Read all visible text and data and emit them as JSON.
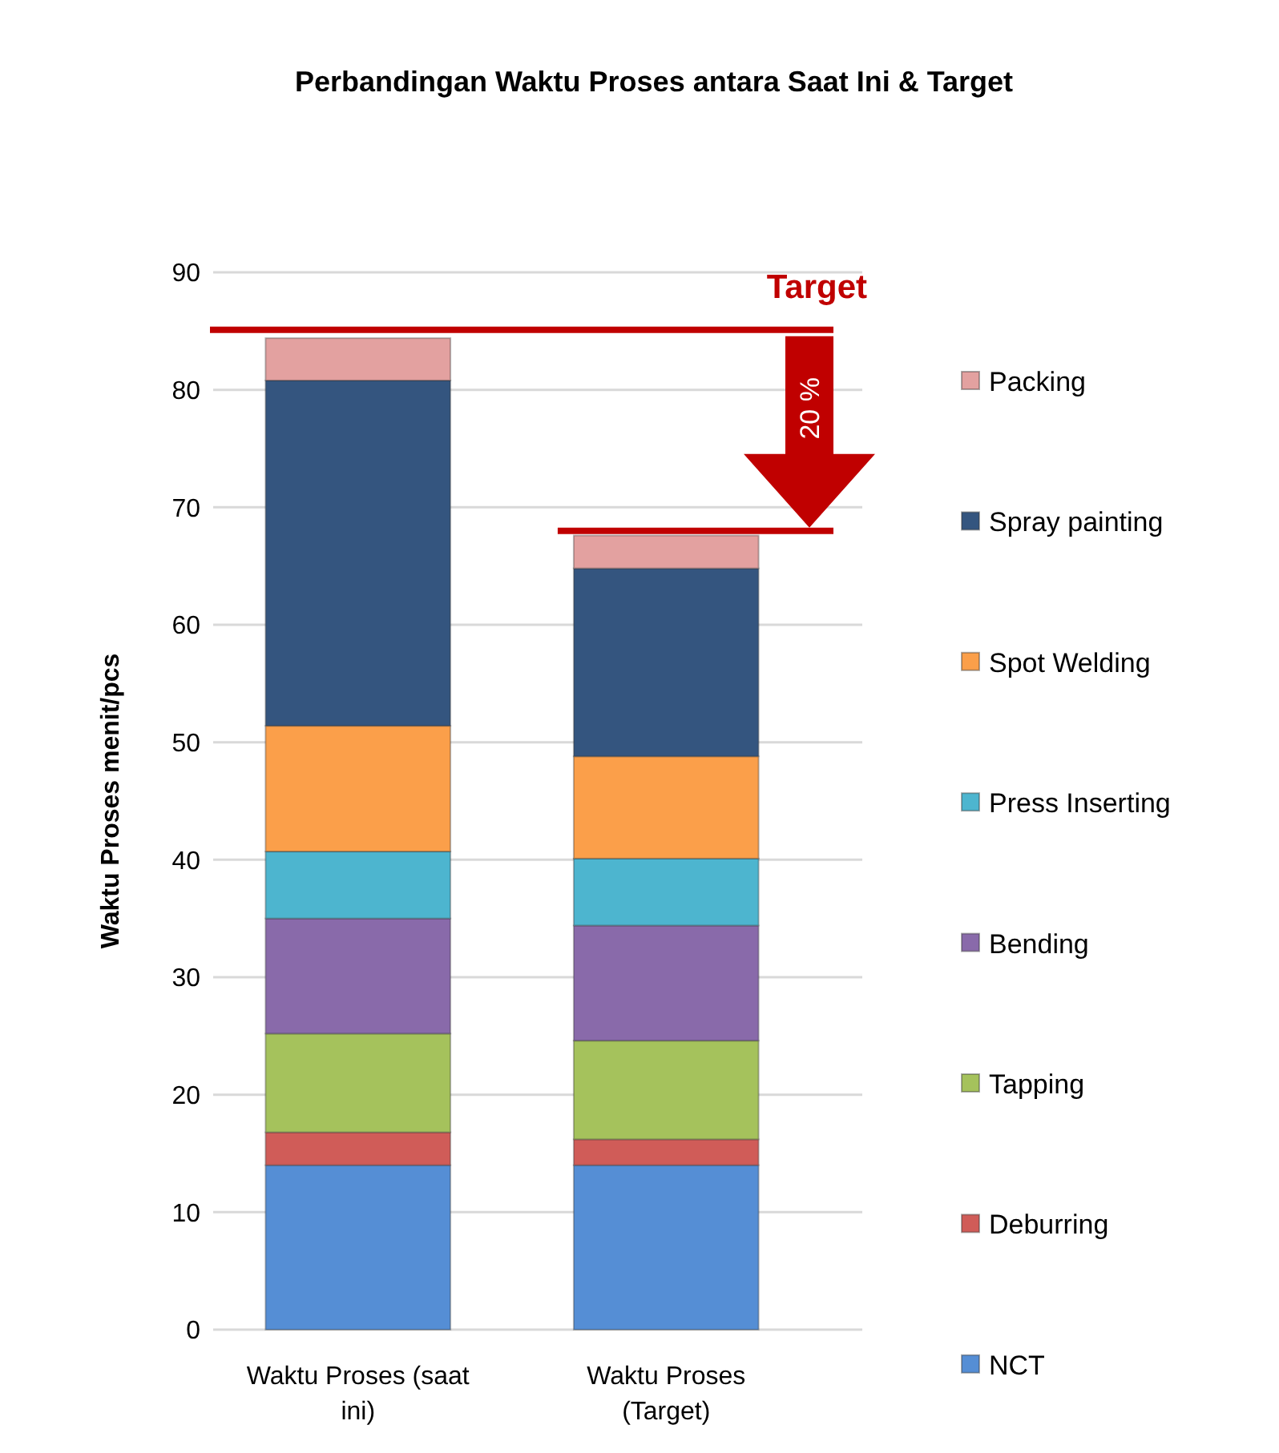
{
  "chart_data": {
    "type": "bar",
    "stacked": true,
    "title": "Perbandingan Waktu Proses antara Saat Ini & Target",
    "ylabel": "Waktu Proses menit/pcs",
    "categories": [
      "Waktu Proses (saat ini)",
      "Waktu Proses (Target)"
    ],
    "series": [
      {
        "name": "NCT",
        "color": "#558ed5",
        "values": [
          14.0,
          14.0
        ]
      },
      {
        "name": "Deburring",
        "color": "#d05c58",
        "values": [
          2.8,
          2.2
        ]
      },
      {
        "name": "Tapping",
        "color": "#a5c25c",
        "values": [
          8.4,
          8.4
        ]
      },
      {
        "name": "Bending",
        "color": "#896aaa",
        "values": [
          9.8,
          9.8
        ]
      },
      {
        "name": "Press Inserting",
        "color": "#4db5cf",
        "values": [
          5.7,
          5.7
        ]
      },
      {
        "name": "Spot Welding",
        "color": "#fb9f4a",
        "values": [
          10.7,
          8.7
        ]
      },
      {
        "name": "Spray painting",
        "color": "#34557f",
        "values": [
          29.4,
          16.0
        ]
      },
      {
        "name": "Packing",
        "color": "#e3a1a0",
        "values": [
          3.6,
          2.8
        ]
      }
    ],
    "ylim": [
      0,
      90
    ],
    "yticks": [
      0,
      10,
      20,
      30,
      40,
      50,
      60,
      70,
      80,
      90
    ],
    "grid": "y",
    "legend": "right",
    "ref_lines": [
      {
        "axis": "y",
        "value": 85.1,
        "label": "Target",
        "color": "#c00000"
      },
      {
        "axis": "y",
        "value": 68.0,
        "color": "#c00000"
      }
    ],
    "annotations": [
      "20 %"
    ]
  }
}
